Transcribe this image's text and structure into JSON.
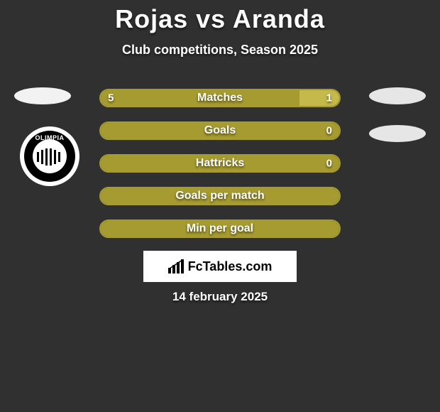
{
  "title": "Rojas vs Aranda",
  "subtitle": "Club competitions, Season 2025",
  "date": "14 february 2025",
  "brand": {
    "text": "FcTables.com"
  },
  "colors": {
    "left": "#a69b31",
    "right": "#c4b94a",
    "border_olive": "#a69b31",
    "background": "#303030"
  },
  "bars": [
    {
      "label": "Matches",
      "left_val": "5",
      "right_val": "1",
      "left_pct": 83.3,
      "right_pct": 16.7,
      "show_vals": true
    },
    {
      "label": "Goals",
      "left_val": "",
      "right_val": "0",
      "left_pct": 100,
      "right_pct": 0,
      "show_vals": true,
      "right_only_val": true
    },
    {
      "label": "Hattricks",
      "left_val": "",
      "right_val": "0",
      "left_pct": 100,
      "right_pct": 0,
      "show_vals": true,
      "right_only_val": true
    },
    {
      "label": "Goals per match",
      "left_val": "",
      "right_val": "",
      "left_pct": 100,
      "right_pct": 0,
      "show_vals": false
    },
    {
      "label": "Min per goal",
      "left_val": "",
      "right_val": "",
      "left_pct": 100,
      "right_pct": 0,
      "show_vals": false
    }
  ]
}
